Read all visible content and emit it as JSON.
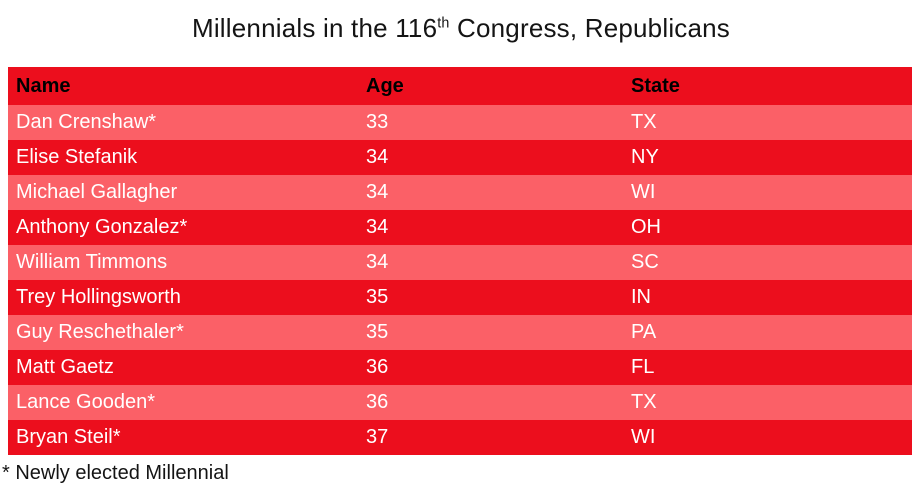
{
  "chart_data": {
    "type": "table",
    "title": {
      "prefix": "Millennials in the 116",
      "superscript": "th",
      "suffix": " Congress, Republicans",
      "full_text": "Millennials in the 116th Congress, Republicans"
    },
    "columns": [
      "Name",
      "Age",
      "State"
    ],
    "rows": [
      [
        "Dan Crenshaw*",
        33,
        "TX"
      ],
      [
        "Elise Stefanik",
        34,
        "NY"
      ],
      [
        "Michael Gallagher",
        34,
        "WI"
      ],
      [
        "Anthony Gonzalez*",
        34,
        "OH"
      ],
      [
        "William Timmons",
        34,
        "SC"
      ],
      [
        "Trey Hollingsworth",
        35,
        "IN"
      ],
      [
        "Guy Reschethaler*",
        35,
        "PA"
      ],
      [
        "Matt Gaetz",
        36,
        "FL"
      ],
      [
        "Lance Gooden*",
        36,
        "TX"
      ],
      [
        "Bryan Steil*",
        37,
        "WI"
      ]
    ],
    "footnote": "* Newly elected Millennial",
    "layout": {
      "row_shading_pattern": "alternating, first data row light",
      "legend": "none",
      "grid": "off"
    },
    "colors": {
      "header_red": "#EC0E1D",
      "row_dark": "#EC0E1D",
      "row_light": "#FB6067",
      "header_text": "#000000",
      "row_text": "#FFFFFF",
      "text_dark": "#141414"
    }
  }
}
